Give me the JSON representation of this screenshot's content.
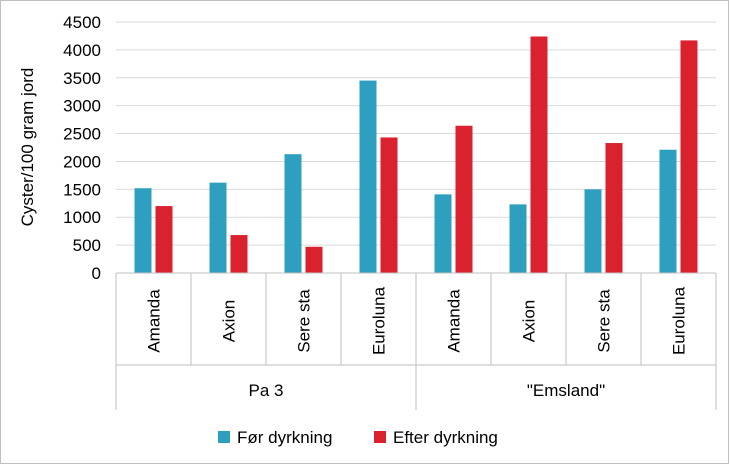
{
  "chart_data": {
    "type": "bar",
    "title": "",
    "ylabel": "Cyster/100 gram jord",
    "xlabel": "",
    "ylim": [
      0,
      4500
    ],
    "yticks": [
      0,
      500,
      1000,
      1500,
      2000,
      2500,
      3000,
      3500,
      4000,
      4500
    ],
    "grid": true,
    "legend_position": "bottom",
    "groups": [
      {
        "label": "Pa 3",
        "categories": [
          "Amanda",
          "Axion",
          "Sere sta",
          "Euroluna"
        ]
      },
      {
        "label": "\"Emsland\"",
        "categories": [
          "Amanda",
          "Axion",
          "Sere sta",
          "Euroluna"
        ]
      }
    ],
    "series": [
      {
        "name": "Før dyrkning",
        "color": "#2e9fbf",
        "values": [
          1520,
          1620,
          2130,
          3450,
          1410,
          1230,
          1500,
          2210
        ]
      },
      {
        "name": "Efter dyrkning",
        "color": "#d9222d",
        "values": [
          1200,
          680,
          470,
          2430,
          2640,
          4240,
          2330,
          4170
        ]
      }
    ]
  }
}
